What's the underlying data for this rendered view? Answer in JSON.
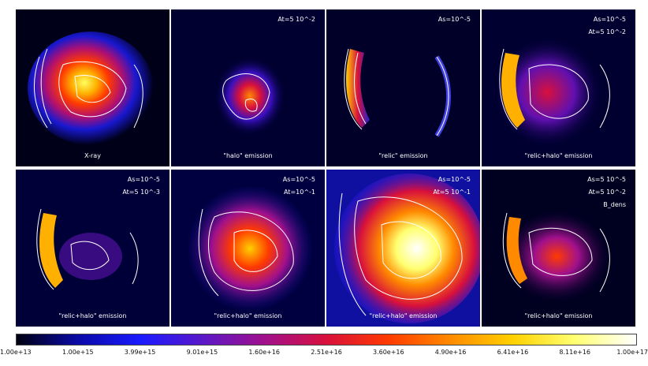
{
  "panels": [
    {
      "label": "X-ray",
      "params": []
    },
    {
      "label": "\"halo\" emission",
      "params": [
        "At=5 10^-2"
      ]
    },
    {
      "label": "\"relic\" emission",
      "params": [
        "As=10^-5"
      ]
    },
    {
      "label": "\"relic+halo\" emission",
      "params": [
        "As=10^-5",
        "At=5 10^-2"
      ]
    },
    {
      "label": "\"relic+halo\" emission",
      "params": [
        "As=10^-5",
        "At=5 10^-3"
      ]
    },
    {
      "label": "\"relic+halo\" emission",
      "params": [
        "As=10^-5",
        "At=10^-1"
      ]
    },
    {
      "label": "\"relic+halo\" emission",
      "params": [
        "As=10^-5",
        "At=5 10^-1"
      ]
    },
    {
      "label": "\"relic+halo\" emission",
      "params": [
        "As=5 10^-5",
        "At=5 10^-2",
        "B_dens"
      ]
    }
  ],
  "colorbar": {
    "ticks": [
      "1.00e+13",
      "1.00e+15",
      "3.99e+15",
      "9.01e+15",
      "1.60e+16",
      "2.51e+16",
      "3.60e+16",
      "4.90e+16",
      "6.41e+16",
      "8.11e+16",
      "1.00e+17"
    ],
    "colors": [
      "#000010",
      "#0a0aa8",
      "#1a1aff",
      "#5a18c8",
      "#a0108c",
      "#d8103c",
      "#ff3a00",
      "#ff8a00",
      "#ffd000",
      "#ffff70",
      "#ffffff"
    ]
  }
}
